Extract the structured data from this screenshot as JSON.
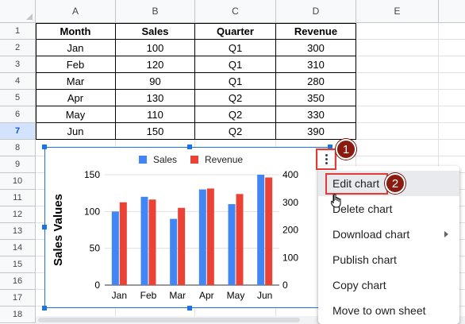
{
  "sheet": {
    "columns": [
      "A",
      "B",
      "C",
      "D",
      "E"
    ],
    "rows": [
      "1",
      "2",
      "3",
      "4",
      "5",
      "6",
      "7",
      "8",
      "9",
      "10",
      "11",
      "12",
      "13",
      "14",
      "15",
      "16",
      "17",
      "18"
    ],
    "table": {
      "headers": [
        "Month",
        "Sales",
        "Quarter",
        "Revenue"
      ],
      "rows": [
        [
          "Jan",
          "100",
          "Q1",
          "300"
        ],
        [
          "Feb",
          "120",
          "Q1",
          "310"
        ],
        [
          "Mar",
          "90",
          "Q1",
          "280"
        ],
        [
          "Apr",
          "130",
          "Q2",
          "350"
        ],
        [
          "May",
          "110",
          "Q2",
          "330"
        ],
        [
          "Jun",
          "150",
          "Q2",
          "390"
        ]
      ]
    }
  },
  "chart_data": {
    "type": "bar",
    "categories": [
      "Jan",
      "Feb",
      "Mar",
      "Apr",
      "May",
      "Jun"
    ],
    "series": [
      {
        "name": "Sales",
        "values": [
          100,
          120,
          90,
          130,
          110,
          150
        ],
        "axis": "left",
        "color": "#4285f4"
      },
      {
        "name": "Revenue",
        "values": [
          300,
          310,
          280,
          350,
          330,
          390
        ],
        "axis": "right",
        "color": "#ea4335"
      }
    ],
    "ylabel": "Sales Values",
    "ylim": [
      0,
      150
    ],
    "yticks": [
      "0",
      "50",
      "100",
      "150"
    ],
    "y2lim": [
      0,
      400
    ],
    "y2ticks": [
      "0",
      "100",
      "200",
      "300",
      "400"
    ],
    "legend": "top"
  },
  "menu": {
    "items": [
      {
        "label": "Edit chart"
      },
      {
        "label": "Delete chart"
      },
      {
        "label": "Download chart",
        "submenu": true
      },
      {
        "label": "Publish chart"
      },
      {
        "label": "Copy chart"
      },
      {
        "label": "Move to own sheet"
      }
    ]
  },
  "callouts": {
    "one": "1",
    "two": "2"
  },
  "colors": {
    "accent": "#1a73e8",
    "callout": "#8b1a10",
    "highlight": "#e53935"
  }
}
